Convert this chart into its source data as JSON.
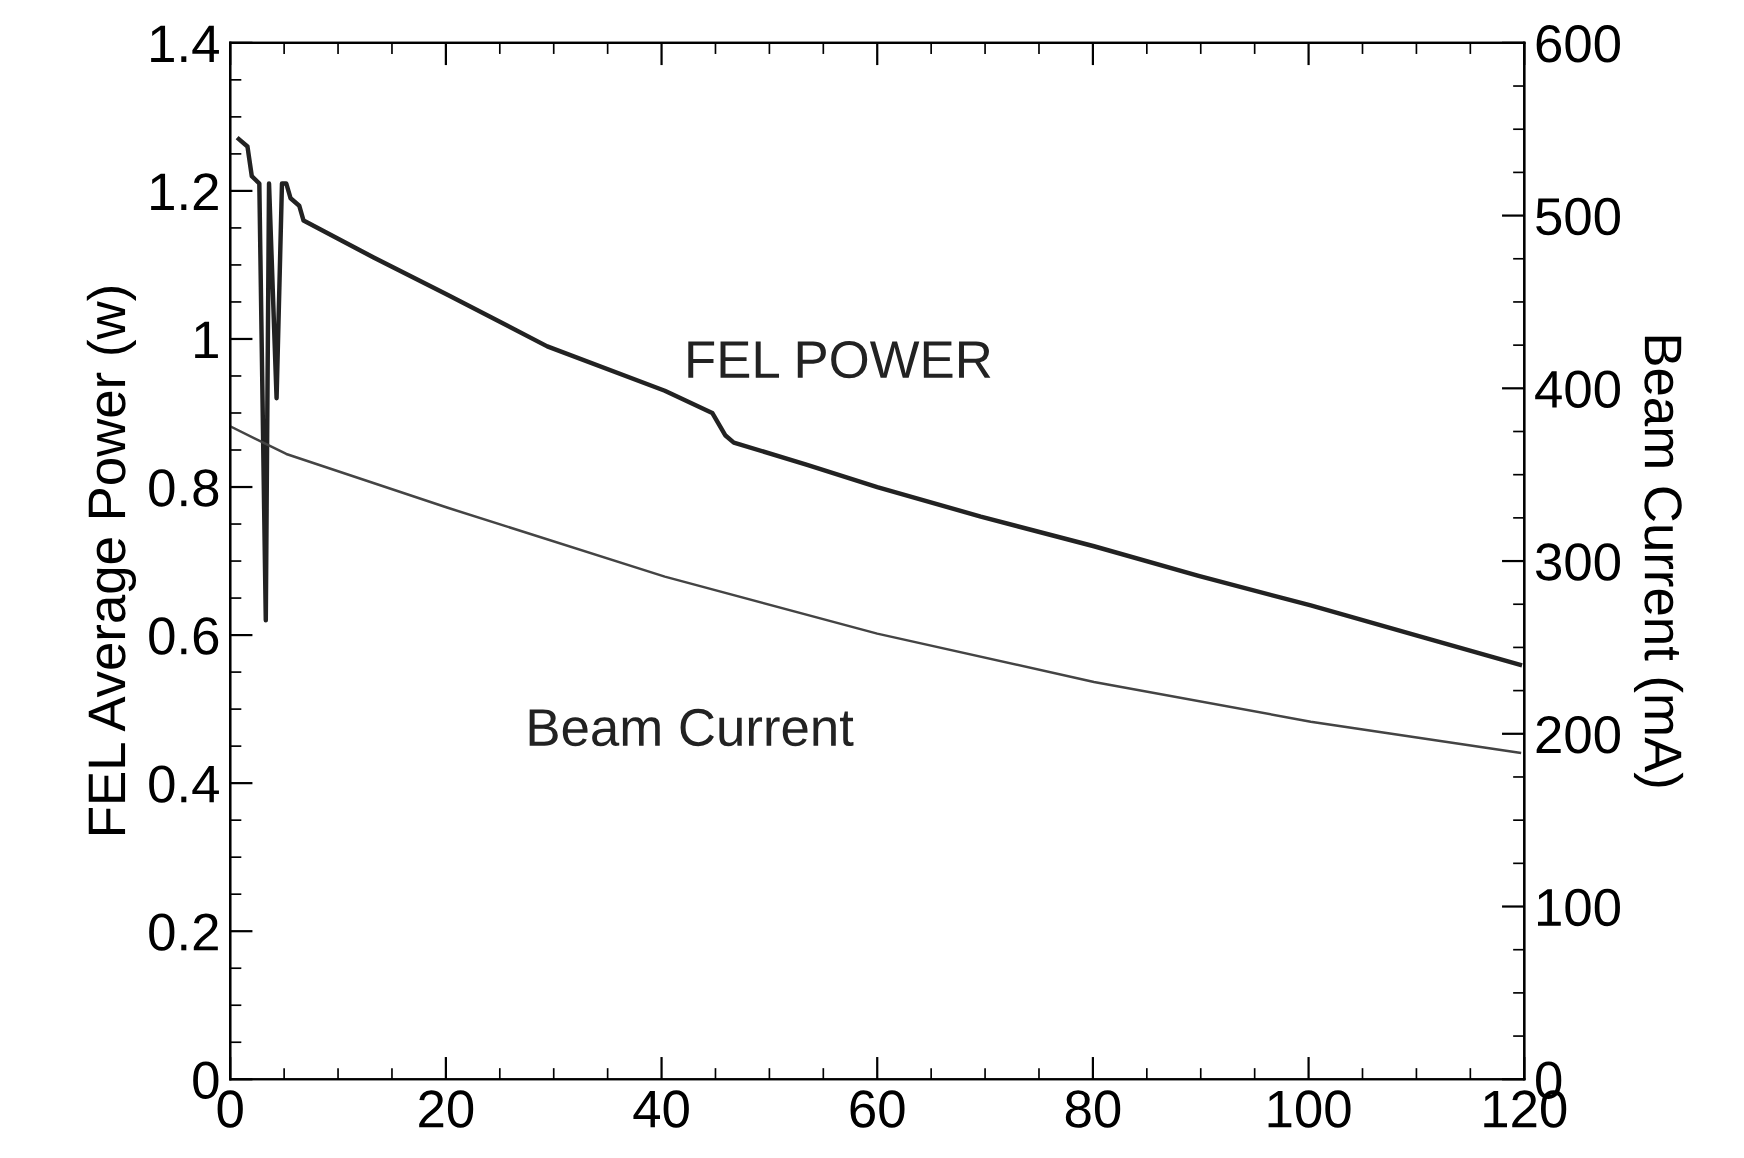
{
  "chart_data": {
    "type": "line",
    "xlabel": null,
    "ylabel": "FEL Average Power (w)",
    "y2label": "Beam Current (mA)",
    "xlim": [
      0,
      120
    ],
    "xticks": [
      0,
      20,
      40,
      60,
      80,
      100,
      120
    ],
    "ylim": [
      0,
      1.4
    ],
    "yticks": [
      0,
      0.2,
      0.4,
      0.6,
      0.8,
      1,
      1.2,
      1.4
    ],
    "y2lim": [
      0,
      600
    ],
    "y2ticks": [
      0,
      100,
      200,
      300,
      400,
      500,
      600
    ],
    "grid": false,
    "legend": false,
    "marker": "none",
    "line_style": "solid",
    "series": [
      {
        "name": "FEL POWER",
        "color": "#222222",
        "x": [
          0.8,
          1.6,
          2.0,
          2.7,
          3.3,
          3.6,
          4.3,
          4.8,
          5.2,
          5.6,
          6.4,
          6.8,
          13.3,
          20.1,
          29.4,
          40.3,
          44.7,
          45.9,
          46.7,
          53.5,
          60,
          69.6,
          80.1,
          89.8,
          100.2,
          109.9,
          119.6
        ],
        "values": [
          1.27,
          1.26,
          1.22,
          1.21,
          0.62,
          1.21,
          0.92,
          1.21,
          1.21,
          1.19,
          1.18,
          1.16,
          1.11,
          1.06,
          0.99,
          0.93,
          0.9,
          0.87,
          0.86,
          0.83,
          0.8,
          0.76,
          0.72,
          0.68,
          0.64,
          0.6,
          0.56
        ]
      },
      {
        "name": "Beam Current",
        "color": "#444444",
        "axis": "y2",
        "x": [
          0,
          5.2,
          20.1,
          40.3,
          60,
          80.1,
          100.2,
          119.6
        ],
        "values": [
          378,
          362,
          331,
          291,
          258,
          230,
          207,
          189
        ]
      }
    ]
  }
}
